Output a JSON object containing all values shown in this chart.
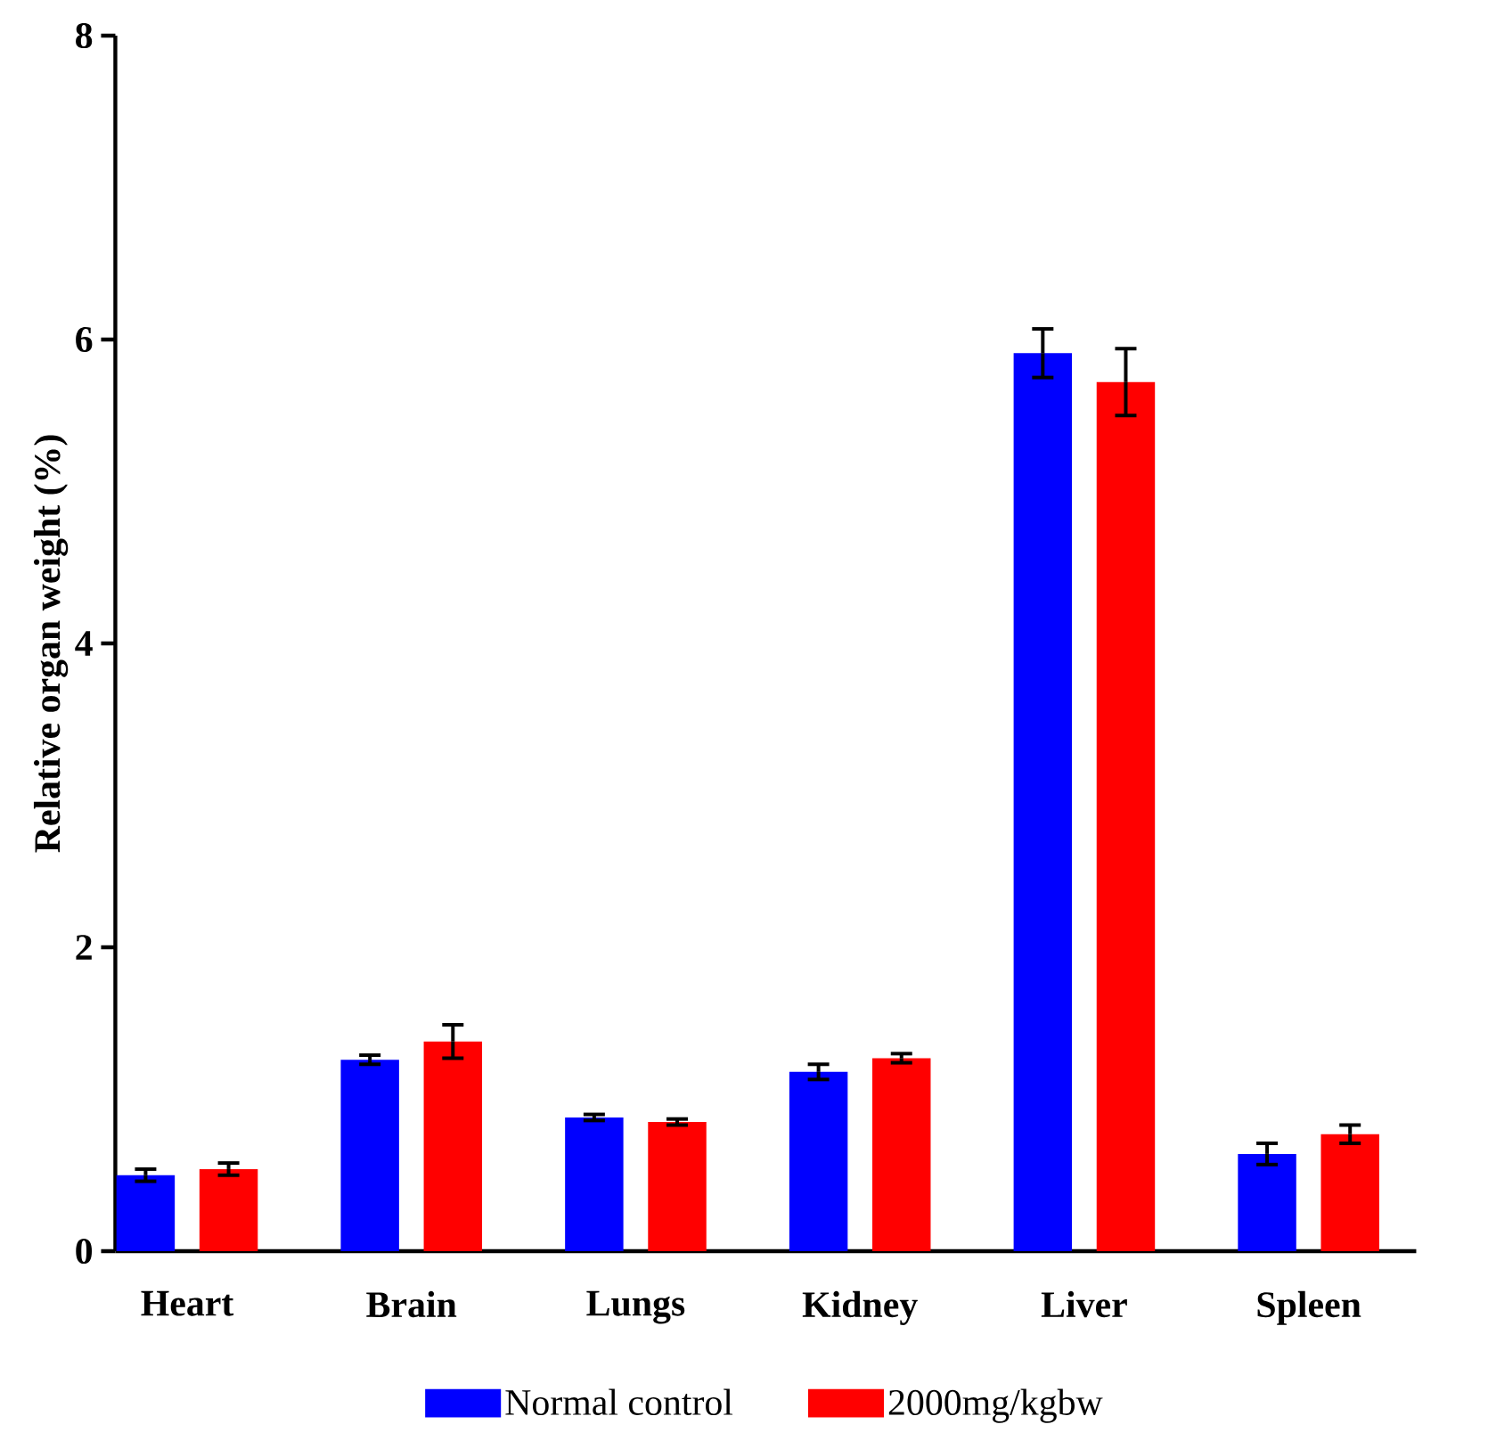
{
  "chart_data": {
    "type": "bar",
    "ylabel": "Relative organ weight (%)",
    "categories": [
      "Heart",
      "Brain",
      "Lungs",
      "Kidney",
      "Liver",
      "Spleen"
    ],
    "series": [
      {
        "name": "Normal control",
        "color": "#0000ff",
        "values": [
          0.5,
          1.26,
          0.88,
          1.18,
          5.91,
          0.64
        ],
        "errors": [
          0.04,
          0.03,
          0.02,
          0.05,
          0.16,
          0.07
        ]
      },
      {
        "name": "2000mg/kgbw",
        "color": "#ff0000",
        "values": [
          0.54,
          1.38,
          0.85,
          1.27,
          5.72,
          0.77
        ],
        "errors": [
          0.04,
          0.11,
          0.02,
          0.03,
          0.22,
          0.06
        ]
      }
    ],
    "ylim": [
      0,
      8
    ],
    "yticks": [
      0,
      2,
      4,
      6,
      8
    ],
    "grid": false,
    "legend": "bottom"
  }
}
